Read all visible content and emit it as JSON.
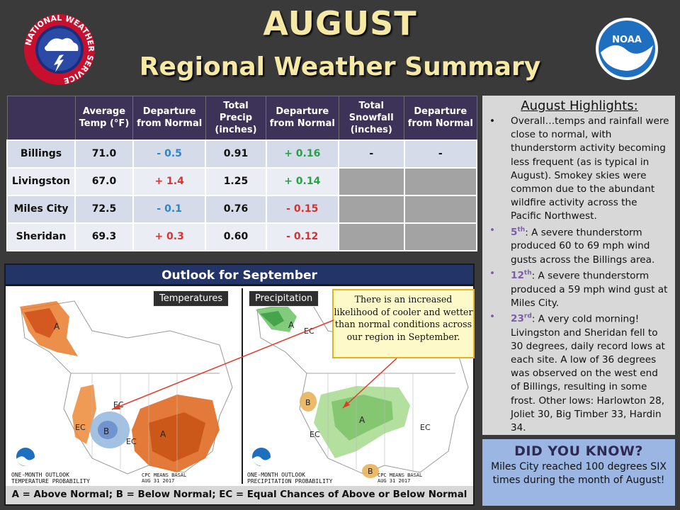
{
  "header": {
    "title": "AUGUST",
    "subtitle": "Regional Weather Summary",
    "nws_logo_text": "NATIONAL WEATHER SERVICE",
    "noaa_logo_text": "NOAA"
  },
  "table": {
    "headers": [
      "",
      "Average Temp (°F)",
      "Departure from Normal",
      "Total Precip (inches)",
      "Departure from Normal",
      "Total Snowfall (inches)",
      "Departure from Normal"
    ],
    "rows": [
      {
        "city": "Billings",
        "temp": "71.0",
        "temp_dep": "- 0.5",
        "precip": "0.91",
        "precip_dep": "+ 0.16",
        "snow": "-",
        "snow_dep": "-"
      },
      {
        "city": "Livingston",
        "temp": "67.0",
        "temp_dep": "+ 1.4",
        "precip": "1.25",
        "precip_dep": "+ 0.14",
        "snow": "",
        "snow_dep": ""
      },
      {
        "city": "Miles City",
        "temp": "72.5",
        "temp_dep": "- 0.1",
        "precip": "0.76",
        "precip_dep": "- 0.15",
        "snow": "",
        "snow_dep": ""
      },
      {
        "city": "Sheridan",
        "temp": "69.3",
        "temp_dep": "+ 0.3",
        "precip": "0.60",
        "precip_dep": "- 0.12",
        "snow": "",
        "snow_dep": ""
      }
    ]
  },
  "highlights": {
    "title": "August Highlights",
    "title_suffix": ":",
    "items": [
      {
        "day": "",
        "sup": "",
        "text": "Overall…temps and rainfall were close to normal, with thunderstorm activity becoming less frequent (as is typical in August). Smokey skies were common due to the abundant wildfire activity across the Pacific Northwest."
      },
      {
        "day": "5",
        "sup": "th",
        "text": ": A severe thunderstorm produced 60 to 69 mph wind gusts across the Billings area."
      },
      {
        "day": "12",
        "sup": "th",
        "text": ": A severe thunderstorm produced a 59 mph wind gust at Miles City."
      },
      {
        "day": "23",
        "sup": "rd",
        "text": ": A very cold morning! Livingston and Sheridan fell to 30 degrees, daily record lows at each site. A low of 36 degrees was observed on the west end of Billings, resulting in some frost. Other lows: Harlowton 28, Joliet 30, Big Timber 33, Hardin 34."
      }
    ]
  },
  "did_you_know": {
    "title": "DID YOU KNOW?",
    "text": "Miles City reached 100 degrees SIX times during the month of August!"
  },
  "outlook": {
    "title": "Outlook for September",
    "temp_label": "Temperatures",
    "precip_label": "Precipitation",
    "temp_caption_1": "ONE-MONTH OUTLOOK",
    "temp_caption_2": "TEMPERATURE PROBABILITY",
    "precip_caption_1": "ONE-MONTH OUTLOOK",
    "precip_caption_2": "PRECIPITATION PROBABILITY",
    "credit_1": "CPC MEANS BASAL",
    "credit_2": "AUG 31 2017",
    "callout": "There is an increased likelihood of cooler and wetter than normal conditions across our region in September.",
    "legend": "A = Above Normal;  B = Below Normal;  EC = Equal Chances of Above or Below Normal"
  },
  "colors": {
    "title_text": "#f6e9a4",
    "table_header": "#3d3359",
    "negative": "#2a85c9",
    "warm": "#e03030",
    "wet": "#27a04a",
    "outlook_header": "#233466",
    "did_you_know_bg": "#9bb6e3"
  }
}
